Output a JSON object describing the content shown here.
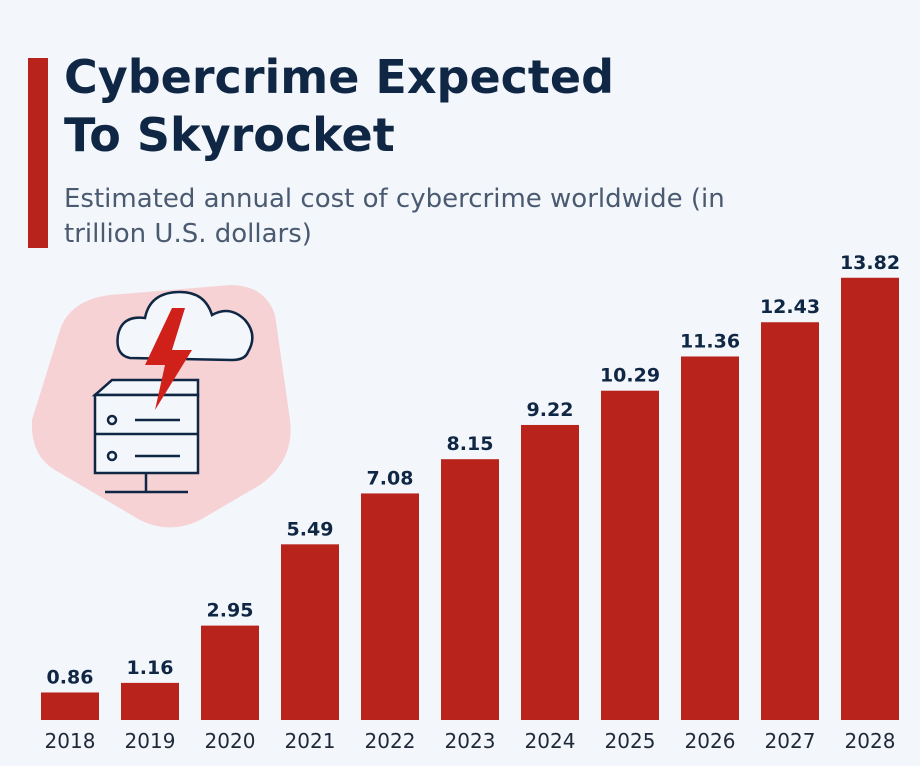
{
  "chart_data": {
    "type": "bar",
    "title": "Cybercrime Expected To Skyrocket",
    "subtitle": "Estimated annual cost of cybercrime worldwide (in trillion U.S. dollars)",
    "categories": [
      "2018",
      "2019",
      "2020",
      "2021",
      "2022",
      "2023",
      "2024",
      "2025",
      "2026",
      "2027",
      "2028"
    ],
    "values": [
      0.86,
      1.16,
      2.95,
      5.49,
      7.08,
      8.15,
      9.22,
      10.29,
      11.36,
      12.43,
      13.82
    ],
    "color": "#b8231c",
    "ylim": [
      0,
      14
    ]
  }
}
